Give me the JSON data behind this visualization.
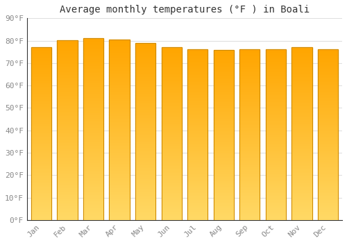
{
  "title": "Average monthly temperatures (°F ) in Boali",
  "months": [
    "Jan",
    "Feb",
    "Mar",
    "Apr",
    "May",
    "Jun",
    "Jul",
    "Aug",
    "Sep",
    "Oct",
    "Nov",
    "Dec"
  ],
  "values": [
    77.0,
    80.2,
    81.1,
    80.4,
    79.0,
    77.2,
    76.3,
    75.9,
    76.0,
    76.1,
    77.2,
    76.3
  ],
  "bar_color_top": "#FFA500",
  "bar_color_bottom": "#FFD966",
  "bar_edge_color": "#CC8800",
  "background_color": "#FFFFFF",
  "grid_color": "#E0E0E0",
  "ylim": [
    0,
    90
  ],
  "ytick_step": 10,
  "title_fontsize": 10,
  "tick_fontsize": 8,
  "font_family": "monospace"
}
